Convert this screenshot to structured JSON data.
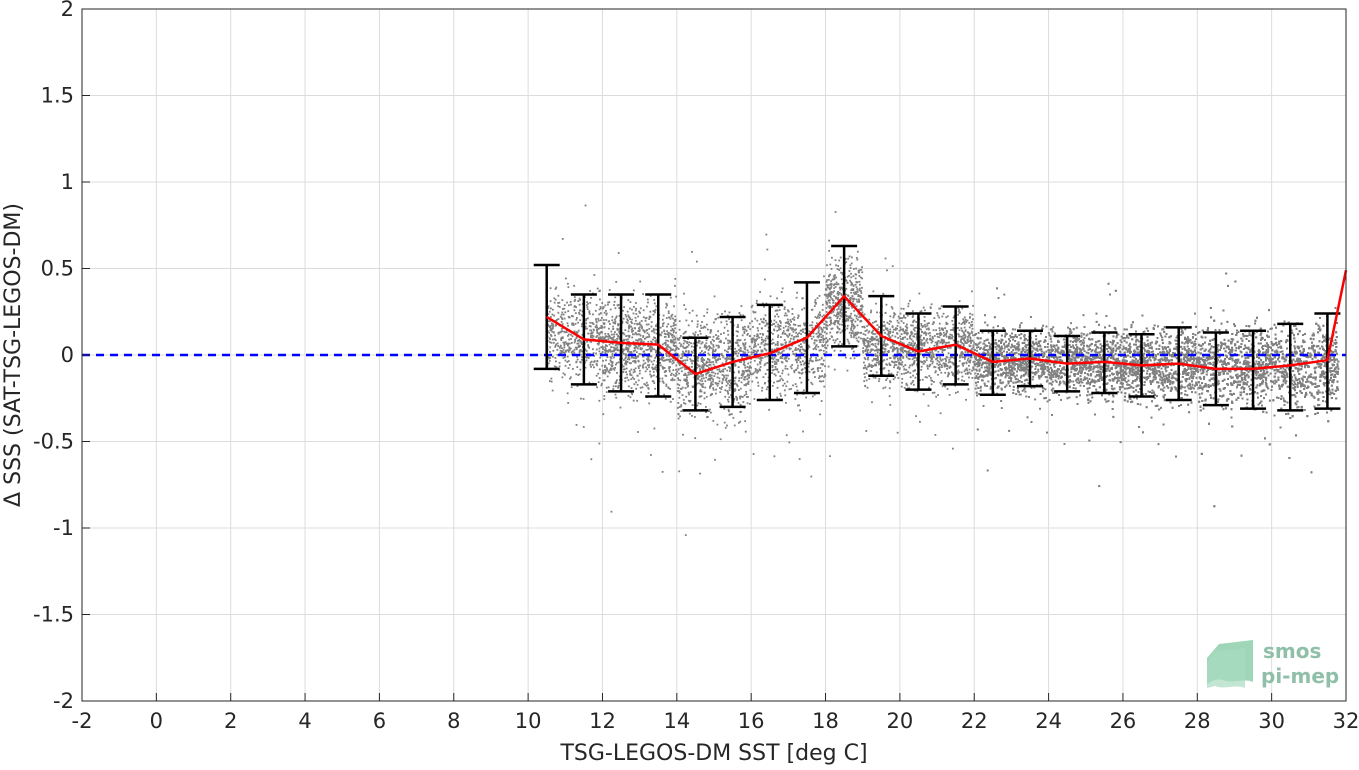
{
  "chart_data": {
    "type": "scatter",
    "title": "",
    "xlabel": "TSG-LEGOS-DM SST [deg C]",
    "ylabel": "Δ SSS (SAT-TSG-LEGOS-DM)",
    "xlim": [
      -2,
      32
    ],
    "ylim": [
      -2,
      2
    ],
    "xticks": [
      -2,
      0,
      2,
      4,
      6,
      8,
      10,
      12,
      14,
      16,
      18,
      20,
      22,
      24,
      26,
      28,
      30,
      32
    ],
    "yticks": [
      -2,
      -1.5,
      -1,
      -0.5,
      0,
      0.5,
      1,
      1.5,
      2
    ],
    "xtick_labels": [
      "-2",
      "0",
      "2",
      "4",
      "6",
      "8",
      "10",
      "12",
      "14",
      "16",
      "18",
      "20",
      "22",
      "24",
      "26",
      "28",
      "30",
      "32"
    ],
    "ytick_labels": [
      "-2",
      "-1.5",
      "-1",
      "-0.5",
      "0",
      "0.5",
      "1",
      "1.5",
      "2"
    ],
    "grid": true,
    "colors": {
      "scatter": "#808080",
      "mean_line": "#ff0000",
      "error_bars": "#000000",
      "zero_line": "#0000ff"
    },
    "zero_reference": {
      "y": 0,
      "style": "dashed"
    },
    "series": [
      {
        "kind": "mean_with_std",
        "x": [
          10.5,
          11.5,
          12.5,
          13.5,
          14.5,
          15.5,
          16.5,
          17.5,
          18.5,
          19.5,
          20.5,
          21.5,
          22.5,
          23.5,
          24.5,
          25.5,
          26.5,
          27.5,
          28.5,
          29.5,
          30.5,
          31.5
        ],
        "mean": [
          0.22,
          0.09,
          0.07,
          0.06,
          -0.11,
          -0.04,
          0.01,
          0.1,
          0.34,
          0.11,
          0.02,
          0.06,
          -0.04,
          -0.02,
          -0.05,
          -0.04,
          -0.06,
          -0.05,
          -0.08,
          -0.08,
          -0.06,
          -0.03
        ],
        "upper": [
          0.52,
          0.35,
          0.35,
          0.35,
          0.1,
          0.22,
          0.29,
          0.42,
          0.63,
          0.34,
          0.24,
          0.28,
          0.14,
          0.14,
          0.11,
          0.13,
          0.12,
          0.16,
          0.13,
          0.14,
          0.18,
          0.24
        ],
        "lower": [
          -0.08,
          -0.17,
          -0.21,
          -0.24,
          -0.32,
          -0.3,
          -0.26,
          -0.22,
          0.05,
          -0.12,
          -0.2,
          -0.17,
          -0.23,
          -0.18,
          -0.21,
          -0.22,
          -0.24,
          -0.26,
          -0.29,
          -0.31,
          -0.32,
          -0.31
        ],
        "line_end": {
          "x": 32,
          "y": 0.49
        }
      }
    ],
    "scatter_density": [
      {
        "x0": 10.5,
        "x1": 12,
        "center": 0.1,
        "spread": 0.25,
        "n": 500
      },
      {
        "x0": 12,
        "x1": 14,
        "center": 0.05,
        "spread": 0.27,
        "n": 900
      },
      {
        "x0": 14,
        "x1": 16,
        "center": -0.05,
        "spread": 0.28,
        "n": 800
      },
      {
        "x0": 16,
        "x1": 18,
        "center": 0.05,
        "spread": 0.28,
        "n": 700
      },
      {
        "x0": 18,
        "x1": 19,
        "center": 0.3,
        "spread": 0.25,
        "n": 500
      },
      {
        "x0": 19,
        "x1": 22,
        "center": 0.05,
        "spread": 0.22,
        "n": 1200
      },
      {
        "x0": 22,
        "x1": 25,
        "center": -0.03,
        "spread": 0.18,
        "n": 3500
      },
      {
        "x0": 25,
        "x1": 28,
        "center": -0.05,
        "spread": 0.2,
        "n": 5000
      },
      {
        "x0": 28,
        "x1": 31.8,
        "center": -0.06,
        "spread": 0.23,
        "n": 8000
      }
    ]
  },
  "logo": {
    "line1": "smos",
    "line2": "pi-mep"
  }
}
